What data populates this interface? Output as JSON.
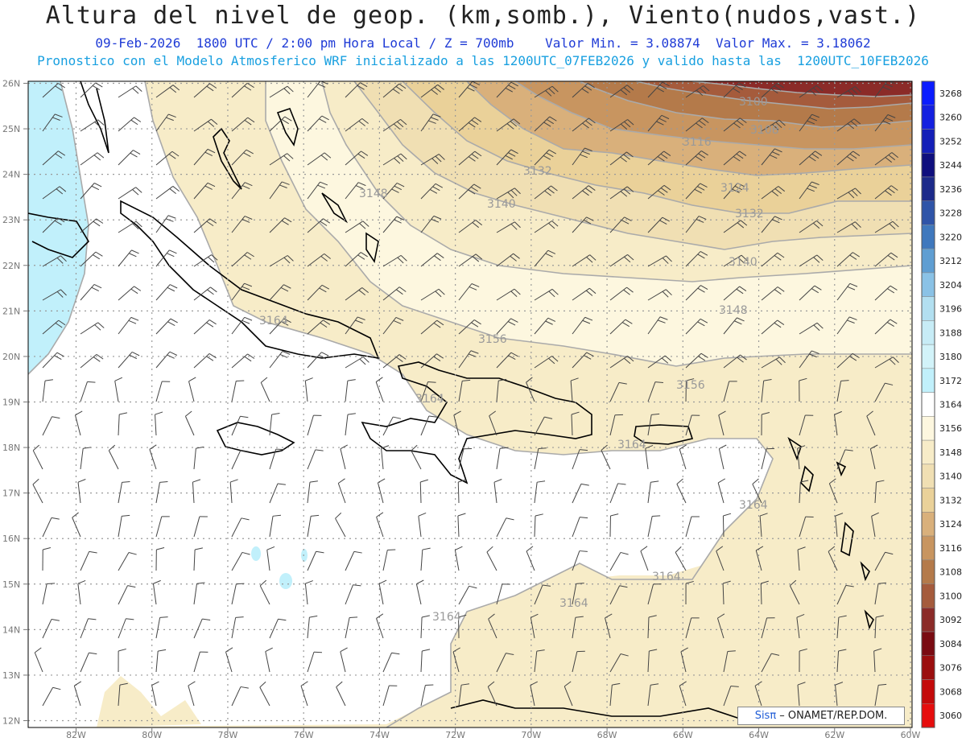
{
  "title": "Altura del nivel de geop. (km,somb.), Viento(nudos,vast.)",
  "subtitle1": "09-Feb-2026  1800 UTC / 2:00 pm Hora Local / Z = 700mb    Valor Min. = 3.08874  Valor Max. = 3.18062",
  "subtitle2": "Pronostico con el Modelo Atmosferico WRF inicializado a las 1200UTC_07FEB2026 y valido hasta las  1200UTC_10FEB2026",
  "credit": {
    "sis": "Sisπ",
    "org": " – ONAMET/REP.DOM."
  },
  "lat_labels": [
    "26N",
    "25N",
    "24N",
    "23N",
    "22N",
    "21N",
    "20N",
    "19N",
    "18N",
    "17N",
    "16N",
    "15N",
    "14N",
    "13N",
    "12N"
  ],
  "lon_labels": [
    "82W",
    "80W",
    "78W",
    "76W",
    "74W",
    "72W",
    "70W",
    "68W",
    "66W",
    "64W",
    "62W",
    "60W"
  ],
  "colorbar": {
    "levels": [
      "3268",
      "3260",
      "3252",
      "3244",
      "3236",
      "3228",
      "3220",
      "3212",
      "3204",
      "3196",
      "3188",
      "3180",
      "3172",
      "3164",
      "3156",
      "3148",
      "3140",
      "3132",
      "3124",
      "3116",
      "3108",
      "3100",
      "3092",
      "3084",
      "3076",
      "3068",
      "3060"
    ],
    "colors": [
      "#0a1cff",
      "#1420e0",
      "#141fb8",
      "#0f0f7e",
      "#1c2a8a",
      "#2f54a8",
      "#3f78bd",
      "#5f9ed2",
      "#8ac2e6",
      "#b2dff0",
      "#c7ecf6",
      "#d2f3f9",
      "#c1f0fb",
      "#ffffff",
      "#fdf7df",
      "#f7ecc8",
      "#f0dfb3",
      "#ead199",
      "#d9b07b",
      "#c89560",
      "#b47a4a",
      "#a55b3c",
      "#8b2b28",
      "#7a0b12",
      "#9b0e0e",
      "#c40a0a",
      "#e60d0d"
    ]
  },
  "contour_labels": [
    "3100",
    "3108",
    "3116",
    "3124",
    "3132",
    "3132",
    "3140",
    "3140",
    "3148",
    "3148",
    "3156",
    "3156",
    "3164",
    "3164",
    "3164",
    "3164",
    "3164",
    "3164",
    "3164"
  ]
}
